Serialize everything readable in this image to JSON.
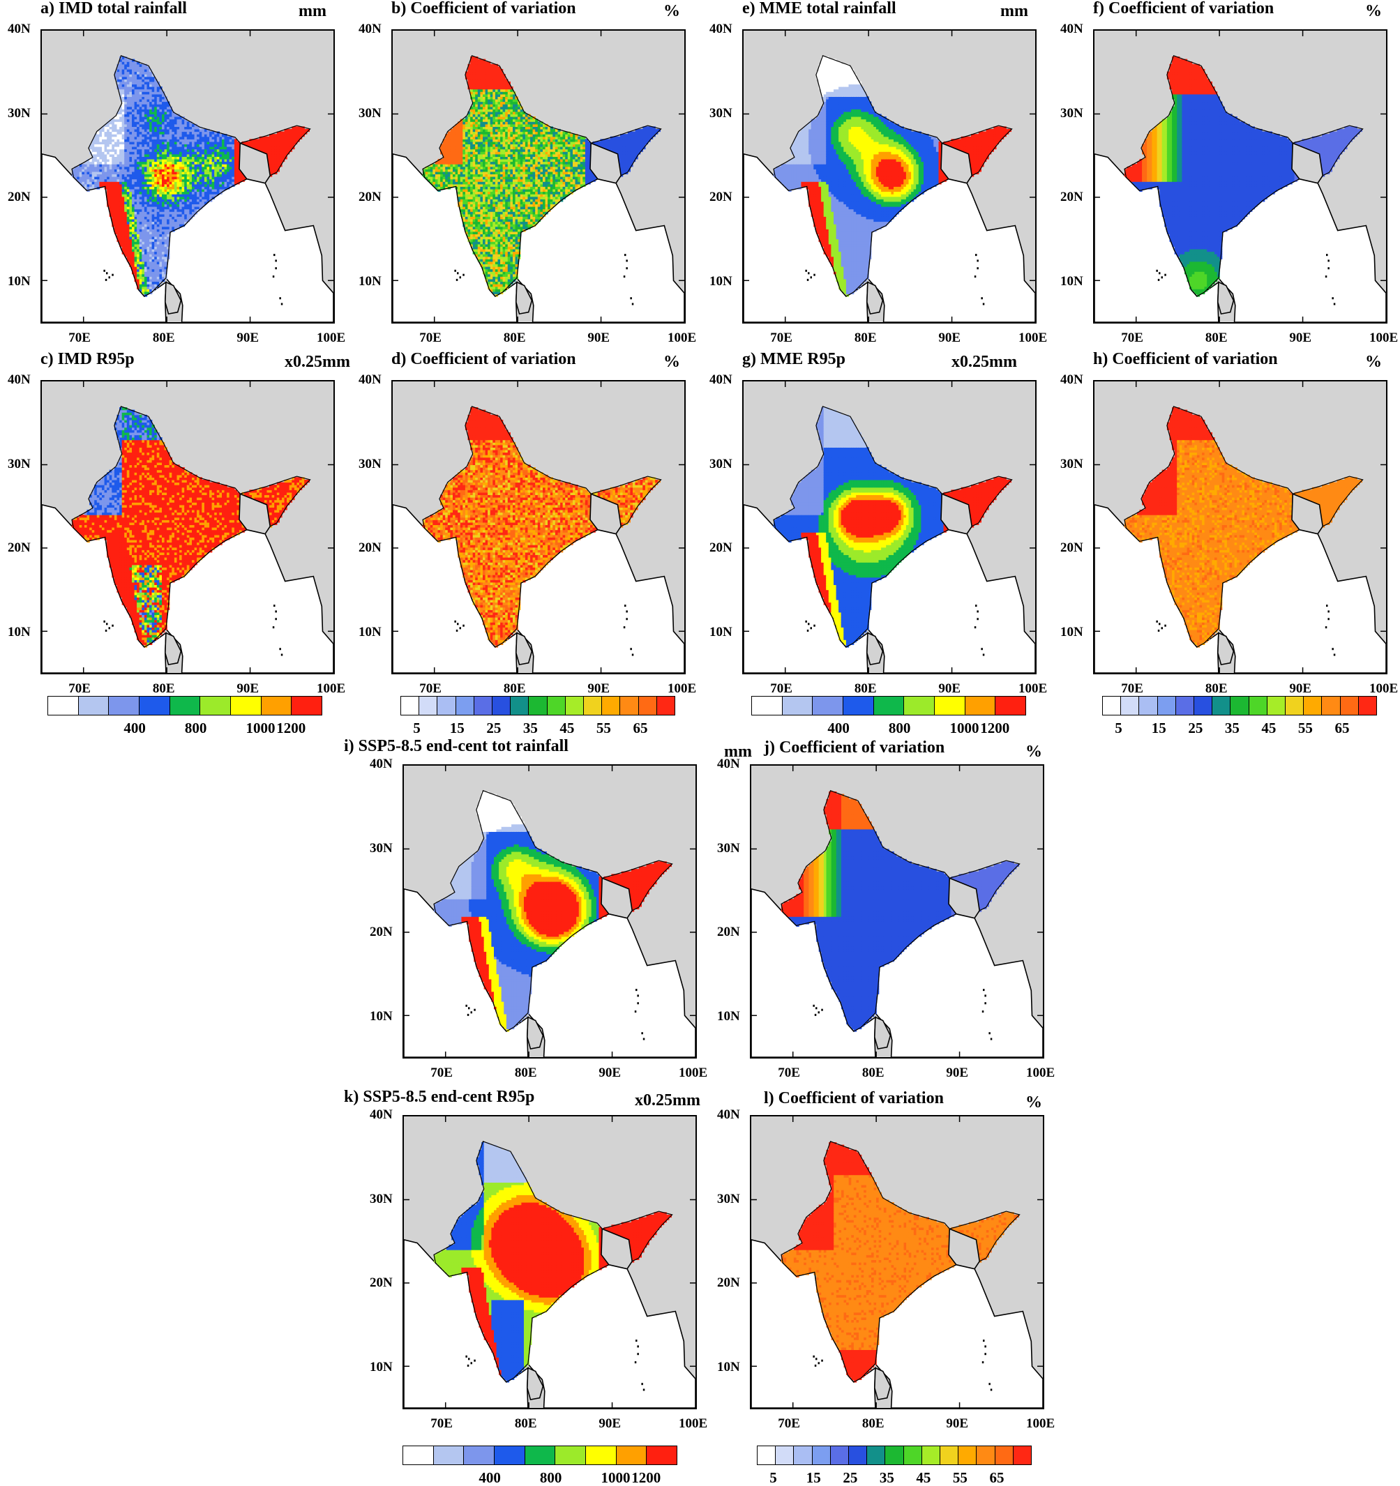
{
  "figure": {
    "axes": {
      "lat_labels": [
        "40N",
        "30N",
        "20N",
        "10N"
      ],
      "lon_labels": [
        "70E",
        "80E",
        "90E",
        "100E"
      ]
    },
    "colorbars": {
      "rainfall": {
        "colors": [
          "#ffffff",
          "#b4c6f0",
          "#7d96ec",
          "#1e5aeb",
          "#0fb84b",
          "#9cea2a",
          "#ffff00",
          "#ffa000",
          "#ff2010"
        ],
        "labels": [
          "400",
          "800",
          "1000",
          "1200"
        ]
      },
      "cv": {
        "colors": [
          "#ffffff",
          "#d2dcf8",
          "#aabef3",
          "#7c9ef0",
          "#5a6ee6",
          "#2850e0",
          "#12908a",
          "#1cb832",
          "#4ed628",
          "#a6ec28",
          "#f0d21e",
          "#ffaa00",
          "#ff8a14",
          "#ff6a14",
          "#ff2814"
        ],
        "labels": [
          "5",
          "15",
          "25",
          "35",
          "45",
          "55",
          "65"
        ]
      }
    },
    "panels": [
      {
        "id": "a",
        "title": "a) IMD total rainfall",
        "unit": "mm",
        "scheme": "rain_obs"
      },
      {
        "id": "b",
        "title": "b) Coefficient of variation",
        "unit": "%",
        "scheme": "cv_obs_total"
      },
      {
        "id": "e",
        "title": "e) MME total rainfall",
        "unit": "mm",
        "scheme": "rain_mme"
      },
      {
        "id": "f",
        "title": "f) Coefficient of variation",
        "unit": "%",
        "scheme": "cv_mme_total"
      },
      {
        "id": "c",
        "title": "c) IMD R95p",
        "unit": "x0.25mm",
        "scheme": "r95_obs"
      },
      {
        "id": "d",
        "title": "d) Coefficient of variation",
        "unit": "%",
        "scheme": "cv_obs_r95"
      },
      {
        "id": "g",
        "title": "g) MME R95p",
        "unit": "x0.25mm",
        "scheme": "r95_mme"
      },
      {
        "id": "h",
        "title": "h) Coefficient of variation",
        "unit": "%",
        "scheme": "cv_mme_r95"
      },
      {
        "id": "i",
        "title": "i) SSP5-8.5 end-cent tot rainfall",
        "unit": "mm",
        "scheme": "rain_ssp"
      },
      {
        "id": "j",
        "title": "j) Coefficient of variation",
        "unit": "%",
        "scheme": "cv_ssp_total"
      },
      {
        "id": "k",
        "title": "k) SSP5-8.5 end-cent R95p",
        "unit": "x0.25mm",
        "scheme": "r95_ssp"
      },
      {
        "id": "l",
        "title": "l) Coefficient of variation",
        "unit": "%",
        "scheme": "cv_ssp_r95"
      }
    ]
  }
}
